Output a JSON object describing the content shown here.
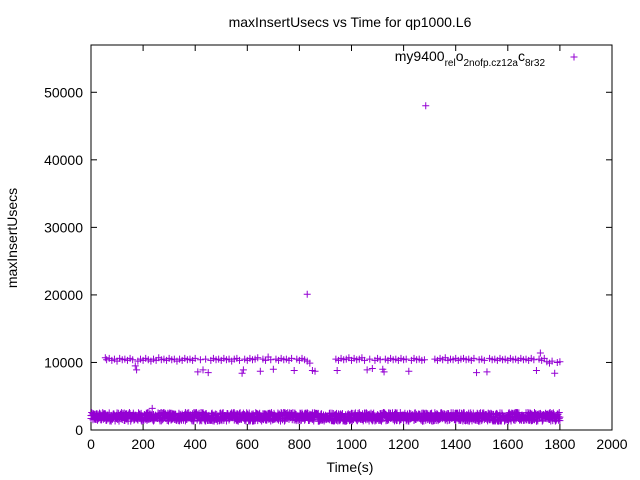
{
  "chart_data": {
    "type": "scatter",
    "title": "maxInsertUsecs vs Time for qp1000.L6",
    "xlabel": "Time(s)",
    "ylabel": "maxInsertUsecs",
    "xlim": [
      0,
      2000
    ],
    "ylim": [
      0,
      57000
    ],
    "x_ticks": [
      0,
      200,
      400,
      600,
      800,
      1000,
      1200,
      1400,
      1600,
      1800,
      2000
    ],
    "y_ticks": [
      0,
      10000,
      20000,
      30000,
      40000,
      50000
    ],
    "grid": false,
    "legend_position": "top-right",
    "marker": "+",
    "color": "#9400D3",
    "series": [
      {
        "name": "my9400_rel_o2nofp.cz12a_c8r32",
        "name_parts": [
          "my9400",
          "rel",
          "o",
          "2nofp.cz12a",
          "c",
          "8r32"
        ],
        "points": [
          [
            55,
            10700
          ],
          [
            60,
            10400
          ],
          [
            70,
            10600
          ],
          [
            80,
            10300
          ],
          [
            90,
            10500
          ],
          [
            100,
            10200
          ],
          [
            110,
            10600
          ],
          [
            120,
            10400
          ],
          [
            130,
            10500
          ],
          [
            140,
            10300
          ],
          [
            150,
            10600
          ],
          [
            160,
            10400
          ],
          [
            170,
            9500
          ],
          [
            175,
            8900
          ],
          [
            180,
            10200
          ],
          [
            190,
            10500
          ],
          [
            200,
            10300
          ],
          [
            210,
            10600
          ],
          [
            220,
            10400
          ],
          [
            230,
            10200
          ],
          [
            240,
            10500
          ],
          [
            250,
            10300
          ],
          [
            260,
            10700
          ],
          [
            270,
            10400
          ],
          [
            280,
            10500
          ],
          [
            290,
            10300
          ],
          [
            300,
            10600
          ],
          [
            310,
            10400
          ],
          [
            320,
            10500
          ],
          [
            330,
            10200
          ],
          [
            340,
            10500
          ],
          [
            350,
            10300
          ],
          [
            360,
            10600
          ],
          [
            370,
            10400
          ],
          [
            380,
            10500
          ],
          [
            390,
            10300
          ],
          [
            400,
            10600
          ],
          [
            410,
            8600
          ],
          [
            420,
            10400
          ],
          [
            430,
            8900
          ],
          [
            440,
            10500
          ],
          [
            450,
            8500
          ],
          [
            460,
            10300
          ],
          [
            470,
            10600
          ],
          [
            480,
            10400
          ],
          [
            490,
            10500
          ],
          [
            500,
            10300
          ],
          [
            510,
            10600
          ],
          [
            520,
            10400
          ],
          [
            530,
            10500
          ],
          [
            540,
            10200
          ],
          [
            550,
            10500
          ],
          [
            560,
            10600
          ],
          [
            570,
            10300
          ],
          [
            580,
            8400
          ],
          [
            585,
            8900
          ],
          [
            590,
            10500
          ],
          [
            600,
            10300
          ],
          [
            610,
            10600
          ],
          [
            620,
            10400
          ],
          [
            630,
            10500
          ],
          [
            640,
            10700
          ],
          [
            650,
            8700
          ],
          [
            660,
            10500
          ],
          [
            670,
            10300
          ],
          [
            680,
            10800
          ],
          [
            690,
            10400
          ],
          [
            700,
            9000
          ],
          [
            710,
            10500
          ],
          [
            720,
            10300
          ],
          [
            730,
            10600
          ],
          [
            740,
            10400
          ],
          [
            750,
            10500
          ],
          [
            760,
            10300
          ],
          [
            770,
            10600
          ],
          [
            780,
            8800
          ],
          [
            790,
            10500
          ],
          [
            800,
            10300
          ],
          [
            810,
            10600
          ],
          [
            820,
            10400
          ],
          [
            830,
            10200
          ],
          [
            840,
            9900
          ],
          [
            850,
            8800
          ],
          [
            860,
            8700
          ],
          [
            940,
            10500
          ],
          [
            945,
            8800
          ],
          [
            950,
            10300
          ],
          [
            960,
            10600
          ],
          [
            970,
            10400
          ],
          [
            980,
            10500
          ],
          [
            990,
            10700
          ],
          [
            1000,
            10300
          ],
          [
            1010,
            10600
          ],
          [
            1020,
            10400
          ],
          [
            1030,
            10500
          ],
          [
            1040,
            10700
          ],
          [
            1050,
            10300
          ],
          [
            1060,
            8900
          ],
          [
            1070,
            10500
          ],
          [
            1080,
            9100
          ],
          [
            1090,
            10300
          ],
          [
            1100,
            10600
          ],
          [
            1110,
            10400
          ],
          [
            1120,
            9000
          ],
          [
            1125,
            8600
          ],
          [
            1130,
            10500
          ],
          [
            1140,
            10300
          ],
          [
            1150,
            10600
          ],
          [
            1160,
            10400
          ],
          [
            1170,
            10500
          ],
          [
            1180,
            10300
          ],
          [
            1190,
            10600
          ],
          [
            1200,
            10400
          ],
          [
            1210,
            10500
          ],
          [
            1220,
            8700
          ],
          [
            1230,
            10300
          ],
          [
            1240,
            10600
          ],
          [
            1250,
            10400
          ],
          [
            1260,
            10500
          ],
          [
            1270,
            10300
          ],
          [
            1280,
            10400
          ],
          [
            1320,
            10500
          ],
          [
            1330,
            10300
          ],
          [
            1340,
            10600
          ],
          [
            1350,
            10400
          ],
          [
            1360,
            10700
          ],
          [
            1370,
            10300
          ],
          [
            1380,
            10500
          ],
          [
            1390,
            10400
          ],
          [
            1400,
            10600
          ],
          [
            1410,
            10300
          ],
          [
            1420,
            10500
          ],
          [
            1430,
            10600
          ],
          [
            1440,
            10400
          ],
          [
            1450,
            10500
          ],
          [
            1460,
            10300
          ],
          [
            1470,
            10600
          ],
          [
            1480,
            8500
          ],
          [
            1490,
            10400
          ],
          [
            1500,
            10500
          ],
          [
            1510,
            10300
          ],
          [
            1520,
            8600
          ],
          [
            1530,
            10600
          ],
          [
            1540,
            10400
          ],
          [
            1550,
            10500
          ],
          [
            1560,
            10300
          ],
          [
            1570,
            10600
          ],
          [
            1580,
            10400
          ],
          [
            1590,
            10500
          ],
          [
            1600,
            10300
          ],
          [
            1610,
            10600
          ],
          [
            1620,
            10400
          ],
          [
            1630,
            10500
          ],
          [
            1640,
            10300
          ],
          [
            1650,
            10600
          ],
          [
            1660,
            10400
          ],
          [
            1670,
            10500
          ],
          [
            1680,
            10300
          ],
          [
            1690,
            10600
          ],
          [
            1700,
            10400
          ],
          [
            1710,
            8800
          ],
          [
            1720,
            10500
          ],
          [
            1725,
            11400
          ],
          [
            1730,
            10300
          ],
          [
            1740,
            10600
          ],
          [
            1750,
            10100
          ],
          [
            1760,
            9900
          ],
          [
            1770,
            10200
          ],
          [
            1780,
            8400
          ],
          [
            1790,
            10000
          ],
          [
            1800,
            10100
          ],
          [
            830,
            20100
          ],
          [
            1285,
            48000
          ],
          [
            235,
            3200
          ]
        ]
      }
    ],
    "dense_band": {
      "x_start": 0,
      "x_end": 1800,
      "y_low": 1300,
      "y_high": 2600,
      "y_center": 1900
    }
  }
}
